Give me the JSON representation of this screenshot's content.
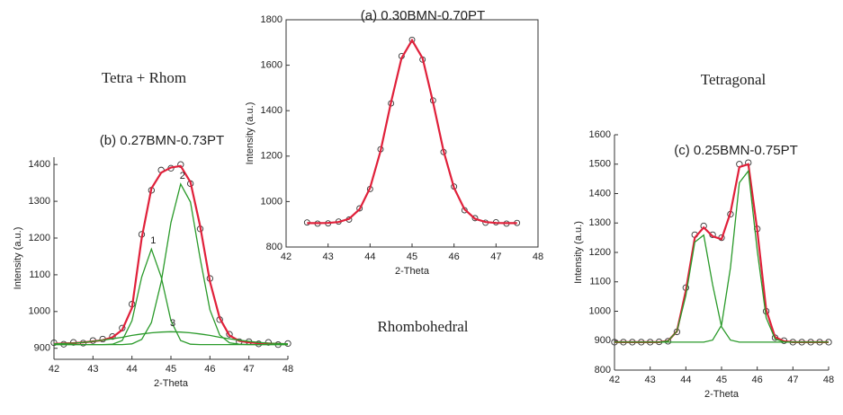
{
  "chart_data": [
    {
      "type": "line",
      "title": "(a) 0.30BMN-0.70PT",
      "phase_label": "Rhombohedral",
      "x_label": "2-Theta",
      "y_label": "Intensity (a.u.)",
      "x": [
        42.5,
        42.75,
        43,
        43.25,
        43.5,
        43.75,
        44,
        44.25,
        44.5,
        44.75,
        45,
        45.25,
        45.5,
        45.75,
        46,
        46.25,
        46.5,
        46.75,
        47,
        47.25,
        47.5
      ],
      "series": [
        {
          "color": "#333333",
          "marker": "circle",
          "line": false,
          "values": [
            908,
            903,
            904,
            912,
            921,
            970,
            1055,
            1230,
            1432,
            1640,
            1712,
            1625,
            1445,
            1218,
            1066,
            962,
            927,
            907,
            909,
            903,
            906
          ]
        },
        {
          "color": "#e0203a",
          "marker": null,
          "line": true,
          "values": [
            905,
            905,
            906,
            910,
            924,
            966,
            1060,
            1223,
            1438,
            1631,
            1710,
            1631,
            1438,
            1223,
            1060,
            966,
            924,
            910,
            906,
            905,
            905
          ]
        }
      ],
      "xlim": [
        42,
        48
      ],
      "ylim": [
        800,
        1800
      ],
      "xticks": [
        42,
        43,
        44,
        45,
        46,
        47,
        48
      ],
      "yticks": [
        800,
        1000,
        1200,
        1400,
        1600,
        1800
      ]
    },
    {
      "type": "line",
      "title": "(b) 0.27BMN-0.73PT",
      "phase_label": "Tetra + Rhom",
      "x_label": "2-Theta",
      "y_label": "Intensity (a.u.)",
      "x": [
        42,
        42.25,
        42.5,
        42.75,
        43,
        43.25,
        43.5,
        43.75,
        44,
        44.25,
        44.5,
        44.75,
        45,
        45.25,
        45.5,
        45.75,
        46,
        46.25,
        46.5,
        46.75,
        47,
        47.25,
        47.5,
        47.75,
        48
      ],
      "series": [
        {
          "color": "#333333",
          "marker": "circle",
          "line": false,
          "values": [
            915,
            911,
            916,
            914,
            921,
            925,
            932,
            955,
            1020,
            1210,
            1330,
            1385,
            1390,
            1400,
            1348,
            1225,
            1090,
            978,
            938,
            918,
            918,
            912,
            916,
            910,
            913
          ]
        },
        {
          "color": "#e0203a",
          "marker": null,
          "line": true,
          "values": [
            912,
            913,
            914,
            916,
            919,
            922,
            930,
            950,
            1010,
            1200,
            1335,
            1378,
            1392,
            1396,
            1352,
            1232,
            1082,
            982,
            935,
            920,
            916,
            914,
            913,
            912,
            911
          ]
        },
        {
          "name": "1",
          "color": "#2a9a2a",
          "marker": null,
          "line": true,
          "values": [
            910,
            910,
            910,
            910,
            910,
            910,
            911,
            921,
            975,
            1094,
            1170,
            1094,
            975,
            921,
            911,
            910,
            910,
            910,
            910,
            910,
            910,
            910,
            910,
            910,
            910
          ]
        },
        {
          "name": "2",
          "color": "#2a9a2a",
          "marker": null,
          "line": true,
          "values": [
            910,
            910,
            910,
            910,
            910,
            910,
            910,
            910,
            912,
            924,
            970,
            1081,
            1242,
            1347,
            1298,
            1144,
            1005,
            936,
            915,
            911,
            910,
            910,
            910,
            910,
            910
          ]
        },
        {
          "name": "3",
          "color": "#2a9a2a",
          "marker": null,
          "line": true,
          "values": [
            912,
            913,
            914,
            916,
            919,
            922,
            926,
            930,
            935,
            939,
            942,
            944,
            945,
            944,
            942,
            939,
            935,
            930,
            926,
            922,
            919,
            916,
            914,
            913,
            912
          ]
        }
      ],
      "xlim": [
        42,
        48
      ],
      "ylim": [
        870,
        1420
      ],
      "xticks": [
        42,
        43,
        44,
        45,
        46,
        47,
        48
      ],
      "yticks": [
        900,
        1000,
        1100,
        1200,
        1300,
        1400
      ]
    },
    {
      "type": "line",
      "title": "(c) 0.25BMN-0.75PT",
      "phase_label": "Tetragonal",
      "x_label": "2-Theta",
      "y_label": "Intensity (a.u.)",
      "x": [
        42,
        42.25,
        42.5,
        42.75,
        43,
        43.25,
        43.5,
        43.75,
        44,
        44.25,
        44.5,
        44.75,
        45,
        45.25,
        45.5,
        45.75,
        46,
        46.25,
        46.5,
        46.75,
        47,
        47.25,
        47.5,
        47.75,
        48
      ],
      "series": [
        {
          "color": "#333333",
          "marker": "circle",
          "line": false,
          "values": [
            895,
            895,
            895,
            895,
            895,
            896,
            898,
            930,
            1080,
            1260,
            1290,
            1260,
            1250,
            1330,
            1500,
            1505,
            1280,
            1000,
            910,
            900,
            895,
            895,
            895,
            895,
            895
          ]
        },
        {
          "color": "#e0203a",
          "marker": null,
          "line": true,
          "values": [
            895,
            895,
            895,
            895,
            895,
            895,
            899,
            932,
            1070,
            1250,
            1285,
            1255,
            1245,
            1335,
            1490,
            1500,
            1275,
            1005,
            912,
            898,
            895,
            895,
            895,
            895,
            895
          ]
        },
        {
          "color": "#2a9a2a",
          "marker": null,
          "line": true,
          "values": [
            895,
            895,
            895,
            895,
            895,
            895,
            899,
            932,
            1053,
            1235,
            1259,
            1090,
            947,
            902,
            895,
            895,
            895,
            895,
            895,
            895,
            895,
            895,
            895,
            895,
            895
          ]
        },
        {
          "color": "#2a9a2a",
          "marker": null,
          "line": true,
          "values": [
            895,
            895,
            895,
            895,
            895,
            895,
            895,
            895,
            895,
            895,
            895,
            902,
            953,
            1148,
            1437,
            1477,
            1206,
            978,
            906,
            896,
            895,
            895,
            895,
            895,
            895
          ]
        }
      ],
      "xlim": [
        42,
        48
      ],
      "ylim": [
        800,
        1600
      ],
      "xticks": [
        42,
        43,
        44,
        45,
        46,
        47,
        48
      ],
      "yticks": [
        800,
        900,
        1000,
        1100,
        1200,
        1300,
        1400,
        1500,
        1600
      ]
    }
  ]
}
